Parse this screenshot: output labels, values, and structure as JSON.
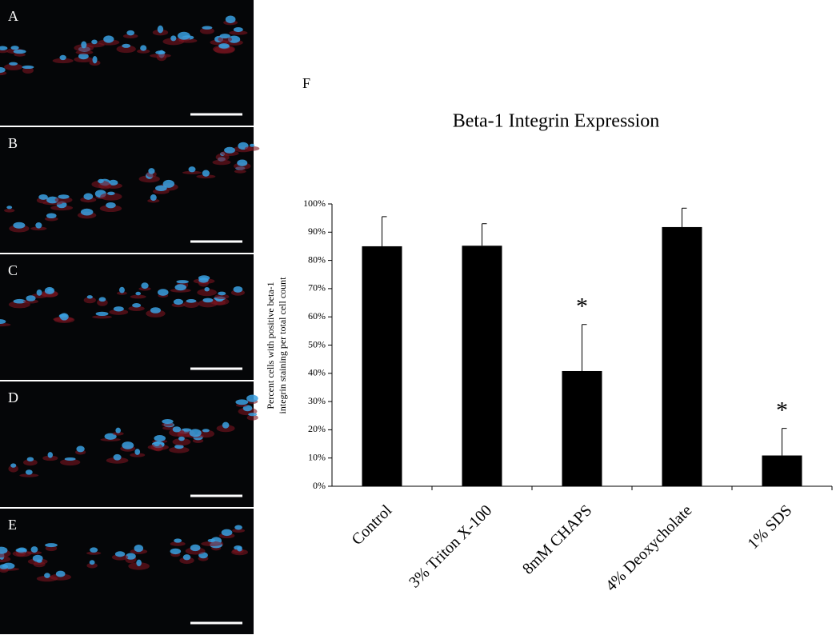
{
  "panel_labels": [
    "A",
    "B",
    "C",
    "D",
    "E",
    "F"
  ],
  "chart_data": {
    "type": "bar",
    "title": "Beta-1 Integrin Expression",
    "y_label": [
      "Percent cells with positive beta-1",
      "integrin staining per total cell count"
    ],
    "categories": [
      "Control",
      "3% Triton X-100",
      "8mM CHAPS",
      "4% Deoxycholate",
      "1% SDS"
    ],
    "values": [
      85,
      85.2,
      40.8,
      91.8,
      10.9
    ],
    "errors": [
      10.5,
      7.8,
      16.5,
      6.7,
      9.6
    ],
    "significance": [
      null,
      null,
      "*",
      null,
      "*"
    ],
    "color": "#000000",
    "ylim": [
      0,
      100
    ],
    "yticks": [
      {
        "value": 0,
        "label": "0%"
      },
      {
        "value": 10,
        "label": "10%"
      },
      {
        "value": 20,
        "label": "20%"
      },
      {
        "value": 30,
        "label": "30%"
      },
      {
        "value": 40,
        "label": "40%"
      },
      {
        "value": 50,
        "label": "50%"
      },
      {
        "value": 60,
        "label": "60%"
      },
      {
        "value": 70,
        "label": "70%"
      },
      {
        "value": 80,
        "label": "80%"
      },
      {
        "value": 90,
        "label": "90%"
      },
      {
        "value": 100,
        "label": "100%"
      }
    ]
  }
}
